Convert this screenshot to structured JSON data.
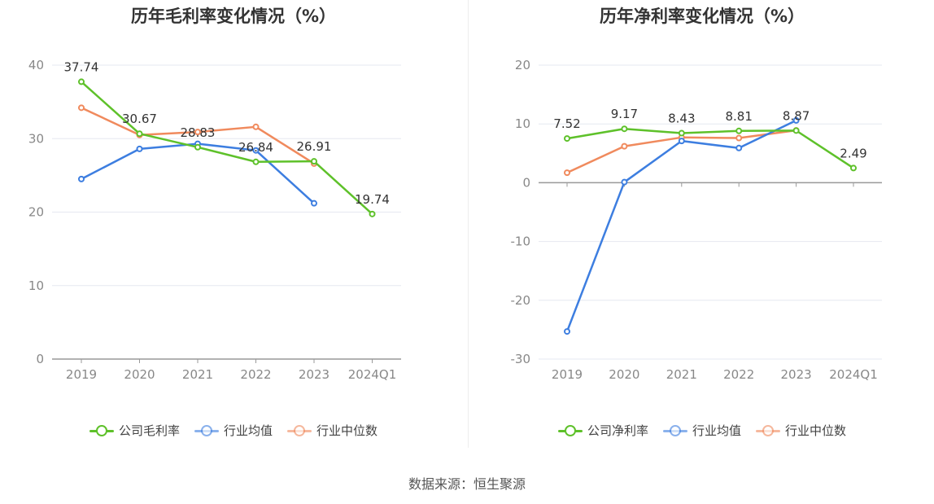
{
  "source_label": "数据来源：恒生聚源",
  "colors": {
    "company": "#5ec12a",
    "industry_avg": "#3d7ee0",
    "industry_median": "#f08a5d"
  },
  "chart_data": [
    {
      "type": "line",
      "title": "历年毛利率变化情况（%）",
      "categories": [
        "2019",
        "2020",
        "2021",
        "2022",
        "2023",
        "2024Q1"
      ],
      "ylim": [
        0,
        40
      ],
      "yticks": [
        0,
        10,
        20,
        30,
        40
      ],
      "grid": true,
      "legend_position": "bottom",
      "series": [
        {
          "name": "公司毛利率",
          "values": [
            37.74,
            30.67,
            28.83,
            26.84,
            26.91,
            19.74
          ],
          "labels": [
            "37.74",
            "30.67",
            "28.83",
            "26.84",
            "26.91",
            "19.74"
          ]
        },
        {
          "name": "行业均值",
          "values": [
            24.5,
            28.6,
            29.3,
            28.4,
            21.2,
            null
          ]
        },
        {
          "name": "行业中位数",
          "values": [
            34.2,
            30.5,
            30.9,
            31.6,
            26.6,
            null
          ]
        }
      ]
    },
    {
      "type": "line",
      "title": "历年净利率变化情况（%）",
      "categories": [
        "2019",
        "2020",
        "2021",
        "2022",
        "2023",
        "2024Q1"
      ],
      "ylim": [
        -30,
        20
      ],
      "yticks": [
        -30,
        -20,
        -10,
        0,
        10,
        20
      ],
      "grid": true,
      "legend_position": "bottom",
      "series": [
        {
          "name": "公司净利率",
          "values": [
            7.52,
            9.17,
            8.43,
            8.81,
            8.87,
            2.49
          ],
          "labels": [
            "7.52",
            "9.17",
            "8.43",
            "8.81",
            "8.87",
            "2.49"
          ]
        },
        {
          "name": "行业均值",
          "values": [
            -25.3,
            0.1,
            7.1,
            5.9,
            10.6,
            null
          ]
        },
        {
          "name": "行业中位数",
          "values": [
            1.7,
            6.2,
            7.7,
            7.6,
            8.9,
            null
          ]
        }
      ]
    }
  ]
}
